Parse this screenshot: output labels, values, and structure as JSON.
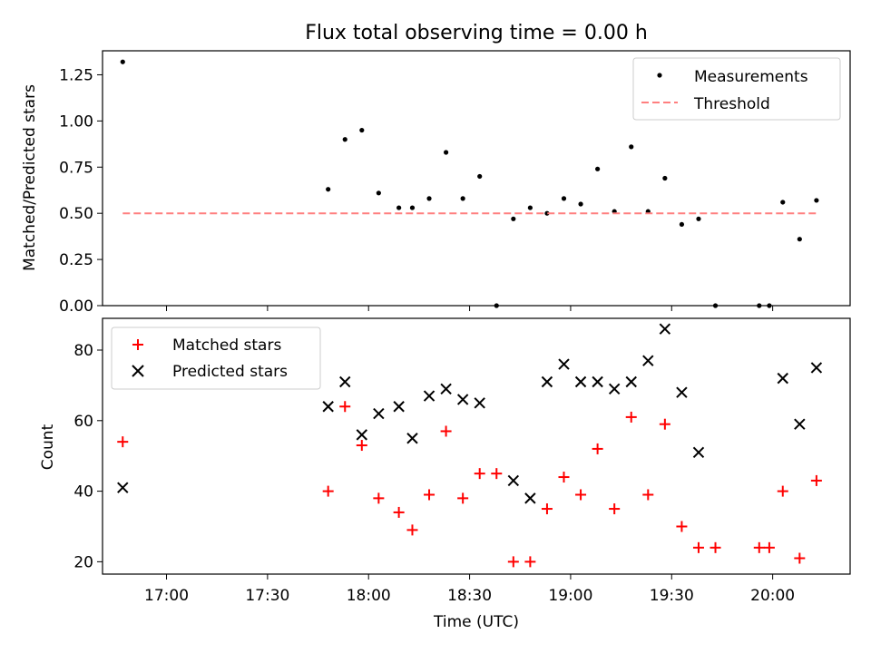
{
  "chart_data": [
    {
      "type": "scatter",
      "title": "Flux total observing time = 0.00 h",
      "xlabel": "",
      "ylabel": "Matched/Predicted stars",
      "xlim": [
        "16:41",
        "20:23"
      ],
      "ylim": [
        0,
        1.38
      ],
      "yticks": [
        "0.00",
        "0.25",
        "0.50",
        "0.75",
        "1.00",
        "1.25"
      ],
      "legend": "top-right",
      "series": [
        {
          "name": "Measurements",
          "marker": "dot",
          "color": "#000000",
          "x": [
            "16:47",
            "17:48",
            "17:53",
            "17:58",
            "18:03",
            "18:09",
            "18:13",
            "18:18",
            "18:23",
            "18:28",
            "18:33",
            "18:38",
            "18:43",
            "18:48",
            "18:53",
            "18:58",
            "19:03",
            "19:08",
            "19:13",
            "19:18",
            "19:23",
            "19:28",
            "19:33",
            "19:38",
            "19:43",
            "19:56",
            "19:59",
            "20:03",
            "20:08",
            "20:13"
          ],
          "y": [
            1.32,
            0.63,
            0.9,
            0.95,
            0.61,
            0.53,
            0.53,
            0.58,
            0.83,
            0.58,
            0.7,
            0.0,
            0.47,
            0.53,
            0.5,
            0.58,
            0.55,
            0.74,
            0.51,
            0.86,
            0.51,
            0.69,
            0.44,
            0.47,
            0.0,
            0.0,
            0.0,
            0.56,
            0.36,
            0.57
          ]
        },
        {
          "name": "Threshold",
          "marker": "dashed-line",
          "color": "#ff7f7f",
          "x": [
            "16:47",
            "20:13"
          ],
          "y": [
            0.5,
            0.5
          ]
        }
      ]
    },
    {
      "type": "scatter",
      "title": "",
      "xlabel": "Time (UTC)",
      "ylabel": "Count",
      "xlim": [
        "16:41",
        "20:23"
      ],
      "ylim": [
        16.5,
        89
      ],
      "yticks": [
        "20",
        "40",
        "60",
        "80"
      ],
      "xticks": [
        "17:00",
        "17:30",
        "18:00",
        "18:30",
        "19:00",
        "19:30",
        "20:00"
      ],
      "legend": "top-left",
      "series": [
        {
          "name": "Matched stars",
          "marker": "plus",
          "color": "#ff0000",
          "x": [
            "16:47",
            "17:48",
            "17:53",
            "17:58",
            "18:03",
            "18:09",
            "18:13",
            "18:18",
            "18:23",
            "18:28",
            "18:33",
            "18:38",
            "18:43",
            "18:48",
            "18:53",
            "18:58",
            "19:03",
            "19:08",
            "19:13",
            "19:18",
            "19:23",
            "19:28",
            "19:33",
            "19:38",
            "19:43",
            "19:56",
            "19:59",
            "20:03",
            "20:08",
            "20:13"
          ],
          "y": [
            54,
            40,
            64,
            53,
            38,
            34,
            29,
            39,
            57,
            38,
            45,
            45,
            20,
            20,
            35,
            44,
            39,
            52,
            35,
            61,
            39,
            59,
            30,
            24,
            24,
            24,
            24,
            40,
            21,
            43
          ]
        },
        {
          "name": "Predicted stars",
          "marker": "x",
          "color": "#000000",
          "x": [
            "16:47",
            "17:48",
            "17:53",
            "17:58",
            "18:03",
            "18:09",
            "18:13",
            "18:18",
            "18:23",
            "18:28",
            "18:33",
            "18:43",
            "18:48",
            "18:53",
            "18:58",
            "19:03",
            "19:08",
            "19:13",
            "19:18",
            "19:23",
            "19:28",
            "19:33",
            "19:38",
            "20:03",
            "20:08",
            "20:13"
          ],
          "y": [
            41,
            64,
            71,
            56,
            62,
            64,
            55,
            67,
            69,
            66,
            65,
            43,
            38,
            71,
            76,
            71,
            71,
            69,
            71,
            77,
            86,
            68,
            51,
            72,
            59,
            75
          ]
        }
      ]
    }
  ]
}
